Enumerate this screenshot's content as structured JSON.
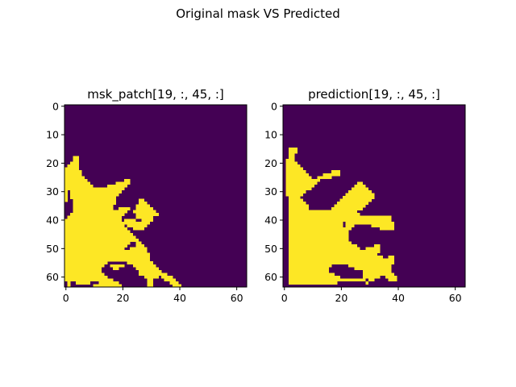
{
  "figure": {
    "suptitle": "Original mask VS Predicted",
    "colors": {
      "background": "#440154",
      "foreground": "#fde725",
      "axis": "#000000"
    }
  },
  "chart_data": [
    {
      "type": "heatmap",
      "title": "msk_patch[19, :, 45, :]",
      "grid_size": [
        64,
        64
      ],
      "xticks": [
        "0",
        "20",
        "40",
        "60"
      ],
      "yticks": [
        "0",
        "10",
        "20",
        "30",
        "40",
        "50",
        "60"
      ],
      "xlim": [
        0,
        63
      ],
      "ylim": [
        0,
        63
      ],
      "colormap": "viridis",
      "values": [
        0,
        1
      ],
      "foreground_rows": [
        [
          18,
          [
            [
              3,
              4
            ]
          ]
        ],
        [
          19,
          [
            [
              3,
              4
            ]
          ]
        ],
        [
          20,
          [
            [
              2,
              4
            ]
          ]
        ],
        [
          21,
          [
            [
              1,
              4
            ]
          ]
        ],
        [
          22,
          [
            [
              0,
              4
            ]
          ]
        ],
        [
          23,
          [
            [
              0,
              5
            ]
          ]
        ],
        [
          24,
          [
            [
              0,
              5
            ]
          ]
        ],
        [
          25,
          [
            [
              0,
              6
            ]
          ]
        ],
        [
          26,
          [
            [
              0,
              7
            ],
            [
              21,
              22
            ]
          ]
        ],
        [
          27,
          [
            [
              0,
              8
            ],
            [
              18,
              22
            ]
          ]
        ],
        [
          28,
          [
            [
              0,
              9
            ],
            [
              15,
              21
            ]
          ]
        ],
        [
          29,
          [
            [
              0,
              12
            ],
            [
              13,
              20
            ]
          ]
        ],
        [
          30,
          [
            [
              0,
              0
            ],
            [
              2,
              19
            ]
          ]
        ],
        [
          31,
          [
            [
              0,
              0
            ],
            [
              2,
              18
            ]
          ]
        ],
        [
          32,
          [
            [
              0,
              0
            ],
            [
              2,
              17
            ]
          ]
        ],
        [
          33,
          [
            [
              0,
              0
            ],
            [
              3,
              17
            ],
            [
              26,
              27
            ]
          ]
        ],
        [
          34,
          [
            [
              3,
              17
            ],
            [
              26,
              28
            ]
          ]
        ],
        [
          35,
          [
            [
              3,
              16
            ],
            [
              25,
              29
            ]
          ]
        ],
        [
          36,
          [
            [
              3,
              16
            ],
            [
              19,
              22
            ],
            [
              25,
              30
            ]
          ]
        ],
        [
          37,
          [
            [
              3,
              21
            ],
            [
              24,
              31
            ]
          ]
        ],
        [
          38,
          [
            [
              2,
              20
            ],
            [
              25,
              32
            ]
          ]
        ],
        [
          39,
          [
            [
              1,
              19
            ],
            [
              25,
              30
            ]
          ]
        ],
        [
          40,
          [
            [
              0,
              19
            ],
            [
              21,
              24
            ],
            [
              27,
              30
            ]
          ]
        ],
        [
          41,
          [
            [
              0,
              20
            ],
            [
              21,
              29
            ]
          ]
        ],
        [
          42,
          [
            [
              0,
              20
            ],
            [
              22,
              28
            ]
          ]
        ],
        [
          43,
          [
            [
              0,
              21
            ],
            [
              24,
              27
            ]
          ]
        ],
        [
          44,
          [
            [
              0,
              22
            ]
          ]
        ],
        [
          45,
          [
            [
              0,
              23
            ]
          ]
        ],
        [
          46,
          [
            [
              0,
              24
            ]
          ]
        ],
        [
          47,
          [
            [
              0,
              25
            ]
          ]
        ],
        [
          48,
          [
            [
              0,
              22
            ],
            [
              25,
              26
            ]
          ]
        ],
        [
          49,
          [
            [
              0,
              21
            ],
            [
              25,
              27
            ]
          ]
        ],
        [
          50,
          [
            [
              0,
              20
            ],
            [
              23,
              28
            ]
          ]
        ],
        [
          51,
          [
            [
              0,
              28
            ]
          ]
        ],
        [
          52,
          [
            [
              0,
              29
            ]
          ]
        ],
        [
          53,
          [
            [
              0,
              29
            ]
          ]
        ],
        [
          54,
          [
            [
              0,
              29
            ]
          ]
        ],
        [
          55,
          [
            [
              0,
              14
            ],
            [
              22,
              30
            ]
          ]
        ],
        [
          56,
          [
            [
              0,
              13
            ],
            [
              16,
              20
            ],
            [
              24,
              31
            ]
          ]
        ],
        [
          57,
          [
            [
              0,
              12
            ],
            [
              17,
              18
            ],
            [
              25,
              32
            ]
          ]
        ],
        [
          58,
          [
            [
              0,
              12
            ],
            [
              26,
              33
            ]
          ]
        ],
        [
          59,
          [
            [
              0,
              13
            ],
            [
              26,
              35
            ]
          ]
        ],
        [
          60,
          [
            [
              0,
              14
            ],
            [
              28,
              32
            ],
            [
              34,
              37
            ]
          ]
        ],
        [
          61,
          [
            [
              0,
              16
            ],
            [
              29,
              30
            ],
            [
              35,
              38
            ]
          ]
        ],
        [
          62,
          [
            [
              1,
              1
            ],
            [
              4,
              8
            ],
            [
              12,
              18
            ],
            [
              29,
              30
            ],
            [
              37,
              39
            ]
          ]
        ],
        [
          63,
          [
            [
              1,
              1
            ],
            [
              10,
              19
            ],
            [
              29,
              30
            ],
            [
              38,
              40
            ]
          ]
        ]
      ]
    },
    {
      "type": "heatmap",
      "title": "prediction[19, :, 45, :]",
      "grid_size": [
        64,
        64
      ],
      "xticks": [
        "0",
        "20",
        "40",
        "60"
      ],
      "yticks": [
        "0",
        "10",
        "20",
        "30",
        "40",
        "50",
        "60"
      ],
      "xlim": [
        0,
        63
      ],
      "ylim": [
        0,
        63
      ],
      "colormap": "viridis",
      "values": [
        0,
        1
      ],
      "foreground_rows": [
        [
          15,
          [
            [
              2,
              4
            ]
          ]
        ],
        [
          16,
          [
            [
              2,
              4
            ]
          ]
        ],
        [
          17,
          [
            [
              2,
              3
            ]
          ]
        ],
        [
          18,
          [
            [
              2,
              3
            ]
          ]
        ],
        [
          19,
          [
            [
              1,
              3
            ]
          ]
        ],
        [
          20,
          [
            [
              1,
              4
            ]
          ]
        ],
        [
          21,
          [
            [
              1,
              5
            ]
          ]
        ],
        [
          22,
          [
            [
              1,
              6
            ]
          ]
        ],
        [
          23,
          [
            [
              1,
              7
            ],
            [
              17,
              19
            ]
          ]
        ],
        [
          24,
          [
            [
              1,
              8
            ],
            [
              14,
              19
            ]
          ]
        ],
        [
          25,
          [
            [
              1,
              9
            ],
            [
              12,
              16
            ]
          ]
        ],
        [
          26,
          [
            [
              1,
              12
            ]
          ]
        ],
        [
          27,
          [
            [
              1,
              11
            ],
            [
              26,
              27
            ]
          ]
        ],
        [
          28,
          [
            [
              1,
              10
            ],
            [
              25,
              28
            ]
          ]
        ],
        [
          29,
          [
            [
              1,
              9
            ],
            [
              24,
              29
            ]
          ]
        ],
        [
          30,
          [
            [
              1,
              7
            ],
            [
              23,
              30
            ]
          ]
        ],
        [
          31,
          [
            [
              1,
              6
            ],
            [
              22,
              31
            ]
          ]
        ],
        [
          32,
          [
            [
              2,
              5
            ],
            [
              21,
              31
            ]
          ]
        ],
        [
          33,
          [
            [
              2,
              6
            ],
            [
              20,
              30
            ]
          ]
        ],
        [
          34,
          [
            [
              2,
              7
            ],
            [
              19,
              29
            ]
          ]
        ],
        [
          35,
          [
            [
              2,
              8
            ],
            [
              18,
              28
            ]
          ]
        ],
        [
          36,
          [
            [
              2,
              8
            ],
            [
              17,
              27
            ]
          ]
        ],
        [
          37,
          [
            [
              2,
              25
            ]
          ]
        ],
        [
          38,
          [
            [
              2,
              26
            ]
          ]
        ],
        [
          39,
          [
            [
              2,
              37
            ]
          ]
        ],
        [
          40,
          [
            [
              2,
              37
            ]
          ]
        ],
        [
          41,
          [
            [
              2,
              20
            ],
            [
              22,
              38
            ]
          ]
        ],
        [
          42,
          [
            [
              2,
              20
            ],
            [
              22,
              24
            ],
            [
              31,
              38
            ]
          ]
        ],
        [
          43,
          [
            [
              2,
              23
            ],
            [
              34,
              38
            ]
          ]
        ],
        [
          44,
          [
            [
              2,
              22
            ]
          ]
        ],
        [
          45,
          [
            [
              2,
              22
            ]
          ]
        ],
        [
          46,
          [
            [
              2,
              22
            ]
          ]
        ],
        [
          47,
          [
            [
              2,
              22
            ]
          ]
        ],
        [
          48,
          [
            [
              2,
              23
            ]
          ]
        ],
        [
          49,
          [
            [
              2,
              25
            ],
            [
              32,
              33
            ]
          ]
        ],
        [
          50,
          [
            [
              2,
              26
            ],
            [
              29,
              33
            ]
          ]
        ],
        [
          51,
          [
            [
              2,
              33
            ]
          ]
        ],
        [
          52,
          [
            [
              2,
              32
            ]
          ]
        ],
        [
          53,
          [
            [
              2,
              34
            ],
            [
              37,
              38
            ]
          ]
        ],
        [
          54,
          [
            [
              2,
              38
            ]
          ]
        ],
        [
          55,
          [
            [
              2,
              38
            ]
          ]
        ],
        [
          56,
          [
            [
              2,
              16
            ],
            [
              23,
              37
            ]
          ]
        ],
        [
          57,
          [
            [
              2,
              15
            ],
            [
              25,
              37
            ]
          ]
        ],
        [
          58,
          [
            [
              2,
              15
            ],
            [
              28,
              37
            ]
          ]
        ],
        [
          59,
          [
            [
              2,
              17
            ],
            [
              28,
              38
            ]
          ]
        ],
        [
          60,
          [
            [
              2,
              19
            ],
            [
              28,
              33
            ],
            [
              36,
              39
            ]
          ]
        ],
        [
          61,
          [
            [
              2,
              28
            ],
            [
              30,
              31
            ],
            [
              37,
              39
            ]
          ]
        ],
        [
          62,
          [
            [
              2,
              18
            ],
            [
              29,
              29
            ]
          ]
        ]
      ]
    }
  ]
}
